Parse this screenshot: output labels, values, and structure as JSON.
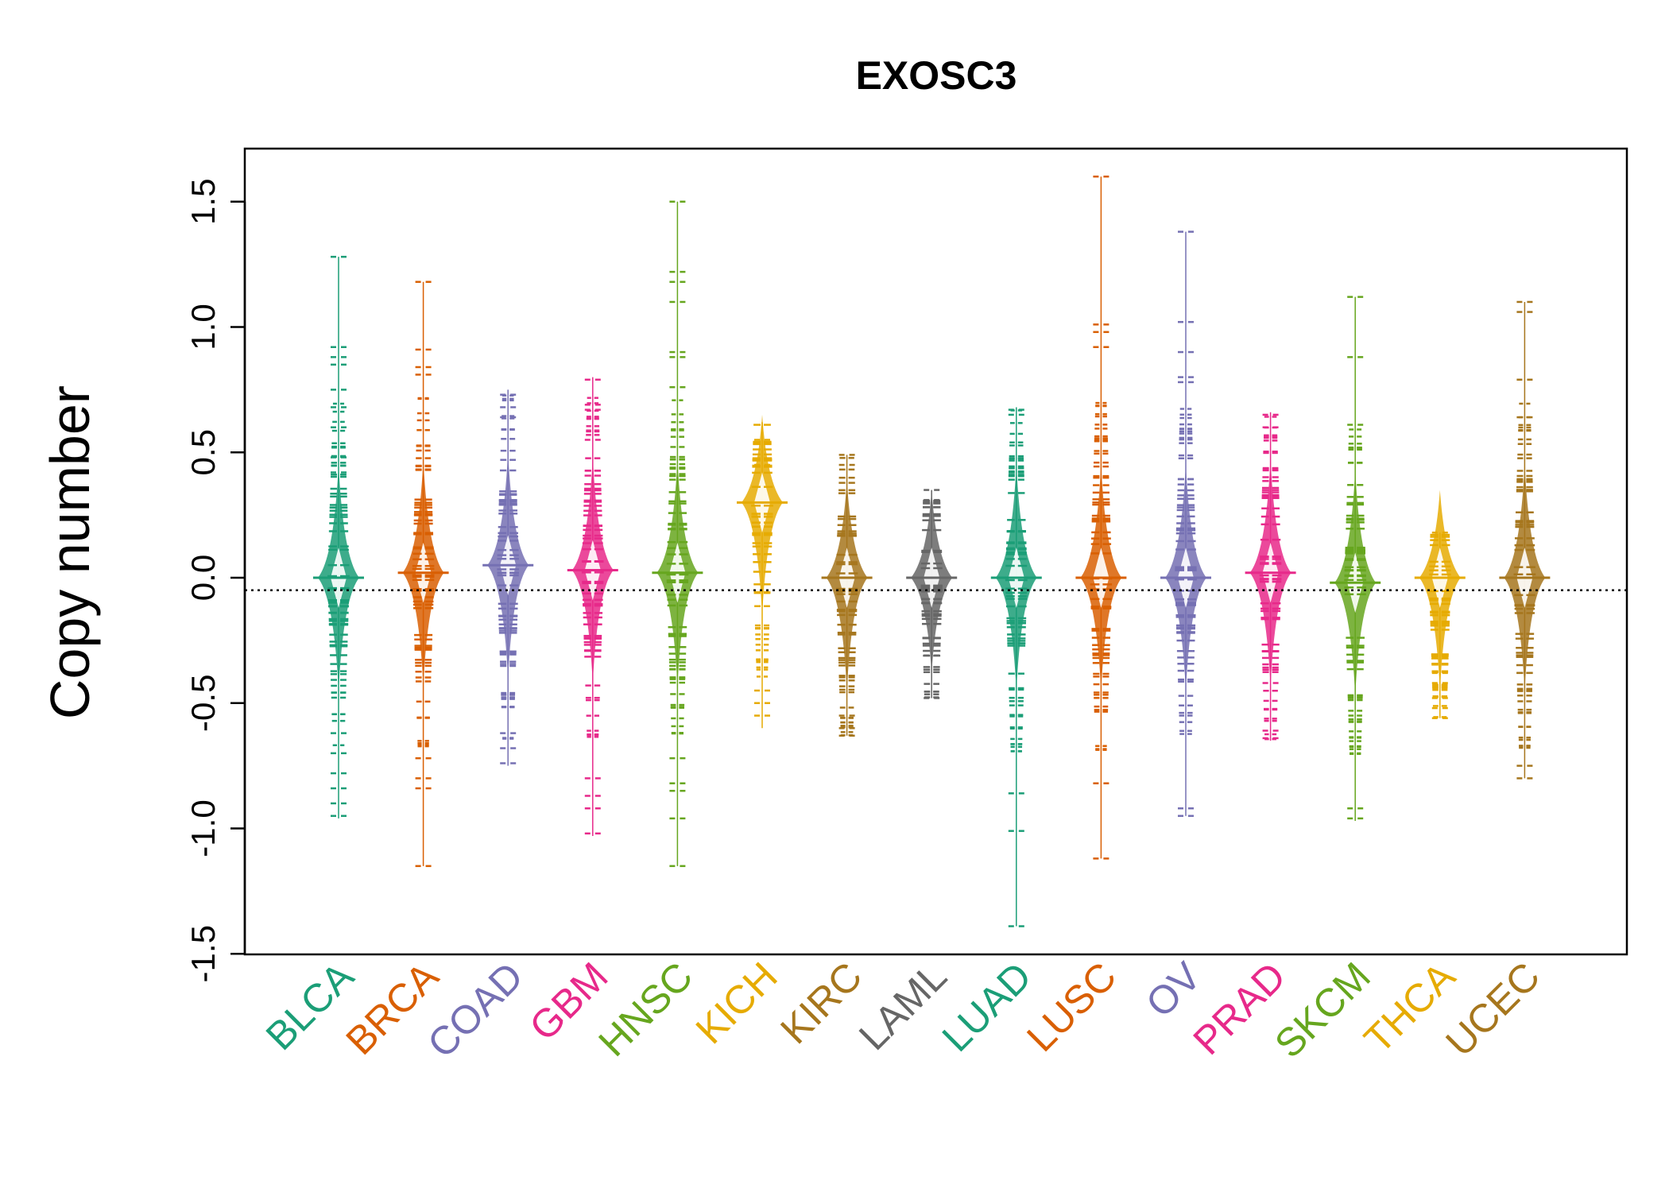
{
  "chart_data": {
    "type": "beanplot",
    "title": "EXOSC3",
    "xlabel": "",
    "ylabel": "Copy number",
    "ylim": [
      -1.5,
      1.7
    ],
    "yticks": [
      "-1.5",
      "-1.0",
      "-0.5",
      "0.0",
      "0.5",
      "1.0",
      "1.5"
    ],
    "reference_line": -0.05,
    "reference_line_style": "dotted",
    "legend": "none",
    "grid": false,
    "categories": [
      "BLCA",
      "BRCA",
      "COAD",
      "GBM",
      "HNSC",
      "KICH",
      "KIRC",
      "LAML",
      "LUAD",
      "LUSC",
      "OV",
      "PRAD",
      "SKCM",
      "THCA",
      "UCEC"
    ],
    "series": [
      {
        "category": "BLCA",
        "color": "#1b9e77",
        "min": -0.96,
        "max": 1.28,
        "center": 0.0,
        "outliers": [
          1.28,
          0.92,
          0.88,
          0.85,
          0.75,
          0.68,
          0.6,
          0.48,
          0.42,
          -0.62,
          -0.7,
          -0.78,
          -0.84,
          -0.9,
          -0.95
        ]
      },
      {
        "category": "BRCA",
        "color": "#d95f02",
        "min": -1.15,
        "max": 1.18,
        "center": 0.02,
        "outliers": [
          1.18,
          0.91,
          0.84,
          0.81,
          -0.72,
          -0.8,
          -0.84,
          -1.15
        ]
      },
      {
        "category": "COAD",
        "color": "#7570b3",
        "min": -0.75,
        "max": 0.75,
        "center": 0.05,
        "outliers": [
          0.73,
          0.68,
          0.64,
          -0.62,
          -0.68,
          -0.74
        ]
      },
      {
        "category": "GBM",
        "color": "#e7298a",
        "min": -1.03,
        "max": 0.8,
        "center": 0.03,
        "outliers": [
          0.79,
          0.69,
          0.67,
          0.55,
          -0.8,
          -0.87,
          -0.92,
          -1.02
        ]
      },
      {
        "category": "HNSC",
        "color": "#66a61e",
        "min": -1.15,
        "max": 1.5,
        "center": 0.02,
        "outliers": [
          1.5,
          1.22,
          1.18,
          1.1,
          0.9,
          0.88,
          0.76,
          -0.72,
          -0.82,
          -0.85,
          -0.96,
          -1.15
        ]
      },
      {
        "category": "KICH",
        "color": "#e6ab02",
        "min": -0.6,
        "max": 0.62,
        "center": 0.3,
        "outliers": [
          0.55,
          0.45,
          -0.45,
          -0.5,
          -0.55
        ]
      },
      {
        "category": "KIRC",
        "color": "#a6761d",
        "min": -0.63,
        "max": 0.49,
        "center": 0.0,
        "outliers": [
          0.49,
          0.45,
          -0.55,
          -0.6,
          -0.63
        ]
      },
      {
        "category": "LAML",
        "color": "#666666",
        "min": -0.48,
        "max": 0.35,
        "center": 0.0,
        "outliers": [
          0.35,
          0.31,
          -0.31,
          -0.48
        ]
      },
      {
        "category": "LUAD",
        "color": "#1b9e77",
        "min": -1.39,
        "max": 0.68,
        "center": 0.0,
        "outliers": [
          0.67,
          0.65,
          -0.86,
          -1.01,
          -1.39
        ]
      },
      {
        "category": "LUSC",
        "color": "#d95f02",
        "min": -1.12,
        "max": 1.6,
        "center": 0.0,
        "outliers": [
          1.6,
          1.01,
          0.98,
          0.92,
          -0.82,
          -1.12
        ]
      },
      {
        "category": "OV",
        "color": "#7570b3",
        "min": -0.95,
        "max": 1.38,
        "center": 0.0,
        "outliers": [
          1.38,
          1.02,
          0.9,
          0.8,
          0.78,
          -0.92,
          -0.95
        ]
      },
      {
        "category": "PRAD",
        "color": "#e7298a",
        "min": -0.65,
        "max": 0.66,
        "center": 0.02,
        "outliers": [
          0.65,
          0.6,
          -0.42,
          -0.61,
          -0.64
        ]
      },
      {
        "category": "SKCM",
        "color": "#66a61e",
        "min": -0.97,
        "max": 1.12,
        "center": -0.02,
        "outliers": [
          1.12,
          0.88,
          0.61,
          -0.92,
          -0.96
        ]
      },
      {
        "category": "THCA",
        "color": "#e6ab02",
        "min": -0.56,
        "max": 0.18,
        "center": 0.0,
        "outliers": [
          0.18,
          0.15,
          -0.32,
          -0.38,
          -0.42,
          -0.48,
          -0.52,
          -0.56
        ]
      },
      {
        "category": "UCEC",
        "color": "#a6761d",
        "min": -0.8,
        "max": 1.1,
        "center": 0.0,
        "outliers": [
          1.1,
          1.06,
          0.79,
          0.64,
          -0.75,
          -0.8
        ]
      }
    ]
  }
}
